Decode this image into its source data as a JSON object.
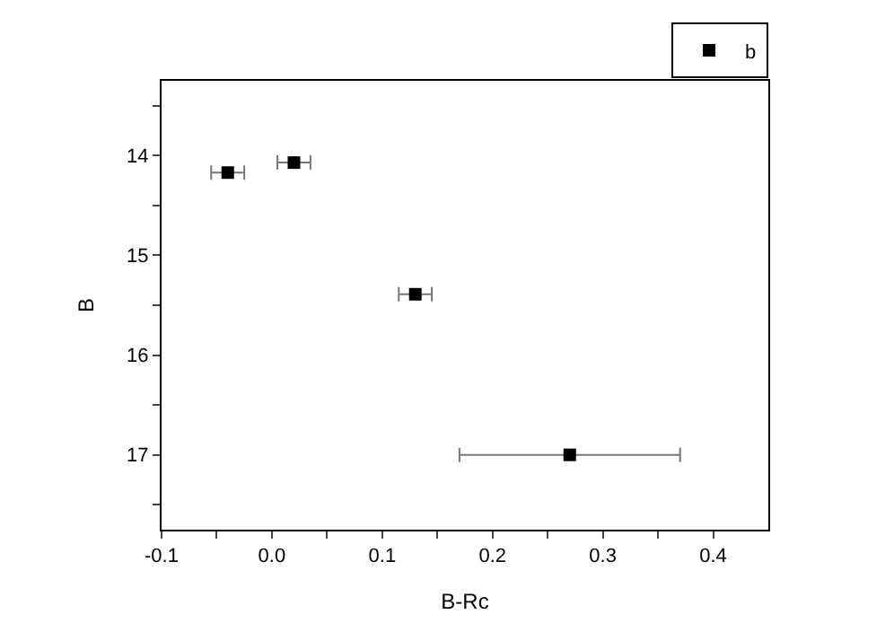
{
  "chart_data": {
    "type": "scatter",
    "xlabel": "B-Rc",
    "ylabel": "B",
    "x": [
      -0.04,
      0.02,
      0.13,
      0.27
    ],
    "series": [
      {
        "name": "b",
        "color": "#000000",
        "values": [
          14.17,
          14.07,
          15.39,
          17.0
        ],
        "xerrors": [
          0.015,
          0.015,
          0.015,
          0.1
        ]
      }
    ],
    "xlim": [
      -0.1,
      0.45
    ],
    "ylim": [
      17.75,
      13.25
    ],
    "xticks": [
      -0.1,
      {
        "value": -0.05,
        "label": null
      },
      {
        "value": 0.0,
        "label": "0.0"
      },
      {
        "value": 0.05,
        "label": null
      },
      0.1,
      {
        "value": 0.15,
        "label": null
      },
      0.2,
      {
        "value": 0.25,
        "label": null
      },
      0.3,
      {
        "value": 0.35,
        "label": null
      },
      0.4
    ],
    "yticks": [
      {
        "value": 13.5,
        "label": null
      },
      14,
      {
        "value": 14.5,
        "label": null
      },
      15,
      {
        "value": 15.5,
        "label": null
      },
      16,
      {
        "value": 16.5,
        "label": null
      },
      17,
      {
        "value": 17.5,
        "label": null
      }
    ],
    "marker": "square",
    "legend": "top right"
  }
}
